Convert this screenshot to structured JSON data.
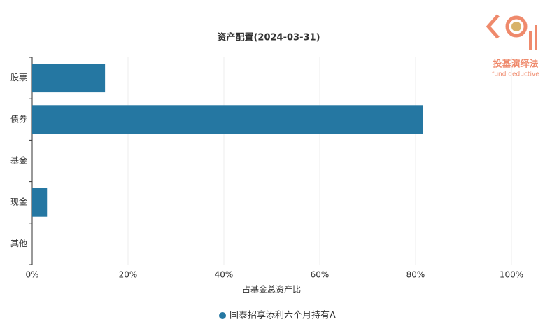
{
  "chart_data": {
    "type": "hbar",
    "title": "资产配置(2024-03-31)",
    "x_label": "占基金总资产比",
    "categories": [
      "股票",
      "债券",
      "基金",
      "现金",
      "其他"
    ],
    "series": [
      {
        "name": "国泰招享添利六个月持有A",
        "color": "#2577a2",
        "values": [
          15.2,
          81.6,
          0,
          3.1,
          0
        ]
      }
    ],
    "xlim": [
      0,
      100
    ],
    "xticks": [
      {
        "value": 0,
        "label": "0%"
      },
      {
        "value": 20,
        "label": "20%"
      },
      {
        "value": 40,
        "label": "40%"
      },
      {
        "value": 60,
        "label": "60%"
      },
      {
        "value": 80,
        "label": "80%"
      },
      {
        "value": 100,
        "label": "100%"
      }
    ],
    "grid": true,
    "legend": "bottom"
  },
  "logo": {
    "title": "投基演绎法",
    "subtitle": "fund deductive"
  }
}
